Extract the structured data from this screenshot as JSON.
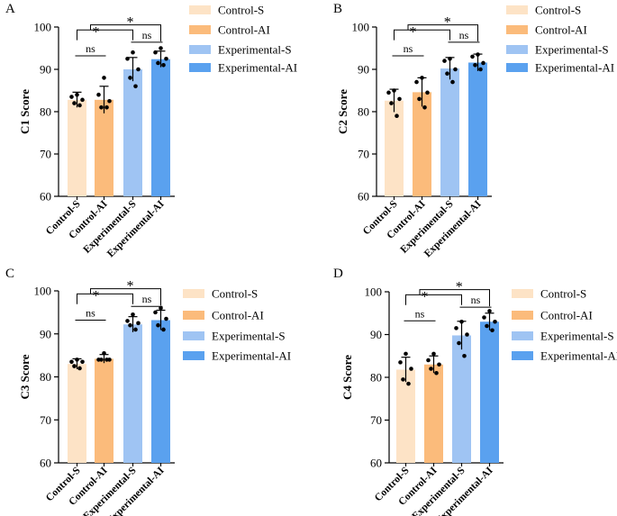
{
  "legend": [
    "Control-S",
    "Control-AI",
    "Experimental-S",
    "Experimental-AI"
  ],
  "colors": [
    "#fde3c6",
    "#fbbb7b",
    "#9fc4f3",
    "#5aa1ef"
  ],
  "chart_data": [
    {
      "type": "bar",
      "panel_label": "A",
      "ylabel": "C1 Score",
      "categories": [
        "Control-S",
        "Control-AI",
        "Experimental-S",
        "Experimental-AI"
      ],
      "yticks": [
        60,
        70,
        80,
        90,
        100
      ],
      "ylim": [
        60,
        100
      ],
      "values": [
        82.8,
        82.8,
        90.0,
        92.4
      ],
      "errors": [
        1.8,
        3.2,
        2.8,
        1.9
      ],
      "points": [
        [
          84,
          83.5,
          82.8,
          82,
          81.5
        ],
        [
          88,
          84,
          82.5,
          81,
          81
        ],
        [
          94,
          92.5,
          90,
          88,
          86
        ],
        [
          95,
          94,
          92.5,
          91.5,
          91
        ]
      ],
      "significance": [
        "ns",
        "*",
        "*",
        "ns"
      ],
      "legend_position": "right"
    },
    {
      "type": "bar",
      "panel_label": "B",
      "ylabel": "C2 Score",
      "categories": [
        "Control-S",
        "Control-AI",
        "Experimental-S",
        "Experimental-AI"
      ],
      "yticks": [
        60,
        70,
        80,
        90,
        100
      ],
      "ylim": [
        60,
        100
      ],
      "values": [
        82.6,
        84.6,
        90.2,
        91.6
      ],
      "errors": [
        2.7,
        3.4,
        2.6,
        2.0
      ],
      "points": [
        [
          85,
          84.5,
          83,
          82,
          79
        ],
        [
          88,
          87,
          84.5,
          83,
          81
        ],
        [
          92.5,
          92,
          90,
          89,
          87
        ],
        [
          93.5,
          93,
          91.5,
          91,
          90
        ]
      ],
      "significance": [
        "ns",
        "*",
        "*",
        "ns"
      ],
      "legend_position": "right"
    },
    {
      "type": "bar",
      "panel_label": "C",
      "ylabel": "C3 Score",
      "categories": [
        "Control-S",
        "Control-AI",
        "Experimental-S",
        "Experimental-AI"
      ],
      "yticks": [
        60,
        70,
        80,
        90,
        100
      ],
      "ylim": [
        60,
        100
      ],
      "values": [
        83.0,
        84.2,
        92.2,
        93.2
      ],
      "errors": [
        1.2,
        1.0,
        1.8,
        2.3
      ],
      "points": [
        [
          84,
          83.5,
          83.5,
          82.5,
          82
        ],
        [
          85.5,
          84,
          84,
          84,
          84
        ],
        [
          94.5,
          93,
          92.5,
          92,
          91
        ],
        [
          96,
          95,
          93.5,
          92,
          91
        ]
      ],
      "significance": [
        "ns",
        "*",
        "*",
        "ns"
      ],
      "legend_position": "right"
    },
    {
      "type": "bar",
      "panel_label": "D",
      "ylabel": "C4 Score",
      "categories": [
        "Control-S",
        "Control-AI",
        "Experimental-S",
        "Experimental-AI"
      ],
      "yticks": [
        60,
        70,
        80,
        90,
        100
      ],
      "ylim": [
        60,
        100
      ],
      "values": [
        81.8,
        83.0,
        89.8,
        93.0
      ],
      "errors": [
        2.9,
        2.0,
        3.3,
        2.0
      ],
      "points": [
        [
          85.5,
          83.5,
          82,
          79.5,
          78.5
        ],
        [
          85.5,
          84,
          83,
          82,
          81
        ],
        [
          93,
          91.5,
          90,
          88,
          85
        ],
        [
          95.5,
          94,
          93,
          92,
          91
        ]
      ],
      "significance": [
        "ns",
        "*",
        "*",
        "ns"
      ],
      "legend_position": "right"
    }
  ]
}
